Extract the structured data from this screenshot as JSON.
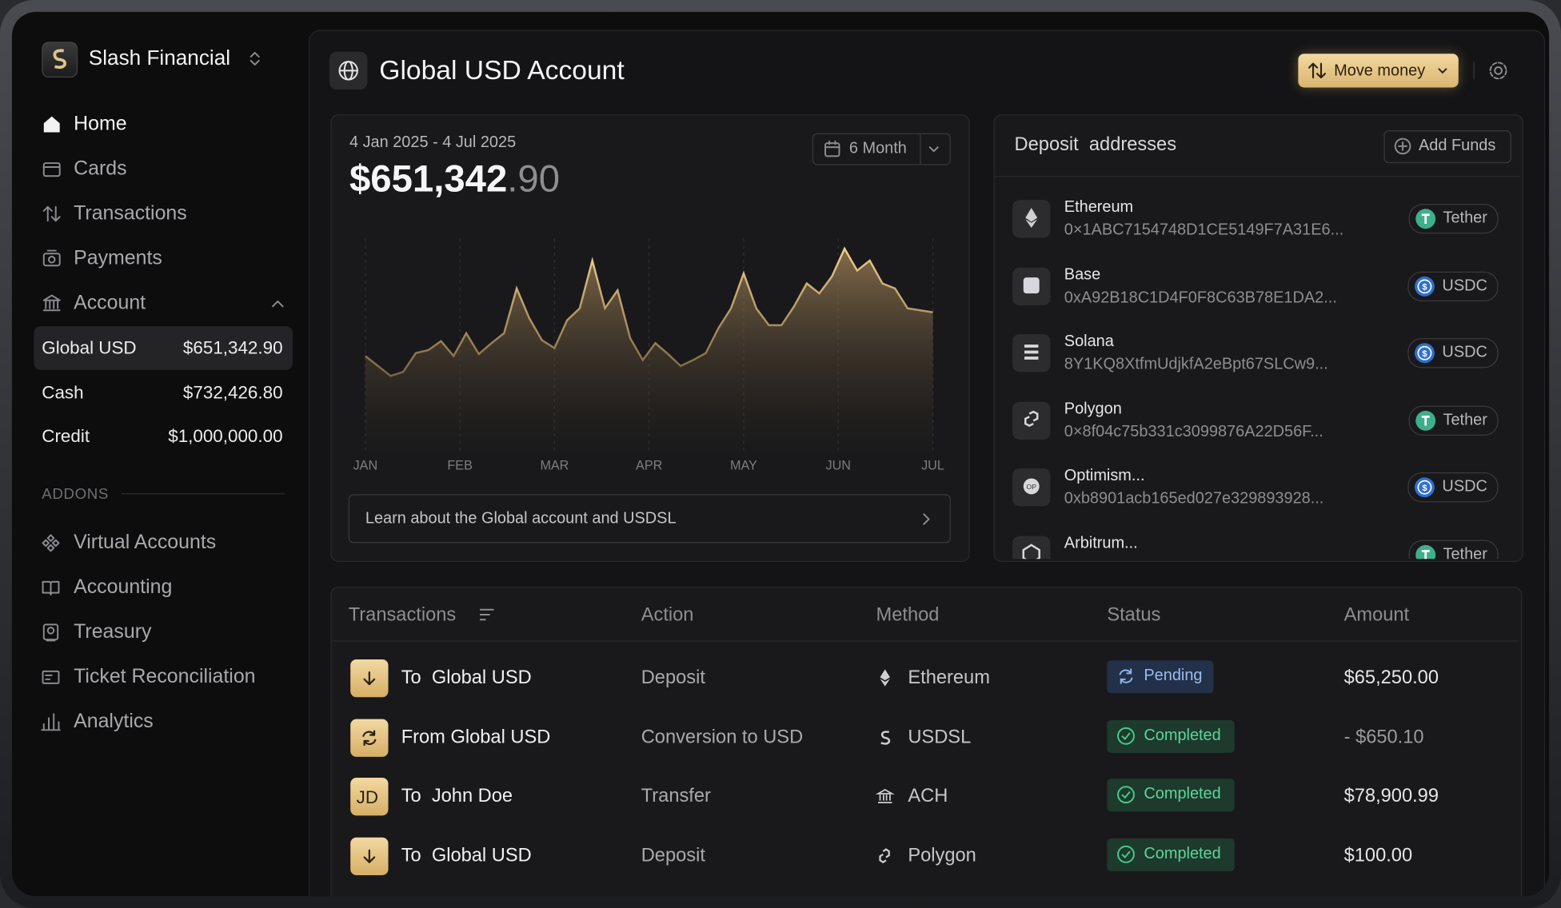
{
  "sidebar": {
    "org": "Slash Financial",
    "nav": [
      "Home",
      "Cards",
      "Transactions",
      "Payments",
      "Account"
    ],
    "accounts": [
      {
        "name": "Global USD",
        "amount": "$651,342.90"
      },
      {
        "name": "Cash",
        "amount": "$732,426.80"
      },
      {
        "name": "Credit",
        "amount": "$1,000,000.00"
      }
    ],
    "addons_label": "ADDONS",
    "addons": [
      "Virtual Accounts",
      "Accounting",
      "Treasury",
      "Ticket Reconciliation",
      "Analytics"
    ]
  },
  "header": {
    "title": "Global USD Account",
    "move_money": "Move money"
  },
  "balance": {
    "date_range": "4 Jan 2025 - 4 Jul 2025",
    "amount_whole": "$651,342",
    "amount_cents": ".90",
    "period": "6 Month",
    "link": "Learn about the Global account and USDSL",
    "chart": {
      "type": "area",
      "months": [
        "JAN",
        "FEB",
        "MAR",
        "APR",
        "MAY",
        "JUN",
        "JUL"
      ],
      "values": [
        97,
        87,
        77,
        81,
        100,
        103,
        112,
        97,
        120,
        99,
        110,
        120,
        165,
        135,
        113,
        105,
        133,
        145,
        193,
        145,
        163,
        115,
        93,
        110,
        99,
        87,
        93,
        100,
        125,
        145,
        180,
        145,
        128,
        128,
        147,
        170,
        160,
        177,
        205,
        183,
        193,
        170,
        165,
        145,
        143,
        141
      ]
    }
  },
  "deposit": {
    "title": "Deposit  addresses",
    "add_funds": "Add Funds",
    "items": [
      {
        "network": "Ethereum",
        "address": "0×1ABC7154748D1CE5149F7A31E6...",
        "token": "Tether"
      },
      {
        "network": "Base",
        "address": "0xA92B18C1D4F0F8C63B78E1DA2...",
        "token": "USDC"
      },
      {
        "network": "Solana",
        "address": "8Y1KQ8XtfmUdjkfA2eBpt67SLCw9...",
        "token": "USDC"
      },
      {
        "network": "Polygon",
        "address": "0×8f04c75b331c3099876A22D56F...",
        "token": "Tether"
      },
      {
        "network": "Optimism...",
        "address": "0xb8901acb165ed027e329893928...",
        "token": "USDC"
      },
      {
        "network": "Arbitrum...",
        "address": "",
        "token": "Tether"
      }
    ]
  },
  "transactions": {
    "headers": [
      "Transactions",
      "Action",
      "Method",
      "Status",
      "Amount"
    ],
    "rows": [
      {
        "icon": "",
        "name": "To  Global USD",
        "action": "Deposit",
        "method": "Ethereum",
        "status": "Pending",
        "amount": "$65,250.00"
      },
      {
        "icon": "",
        "name": "From Global USD",
        "action": "Conversion to USD",
        "method": "USDSL",
        "status": "Completed",
        "amount": "- $650.10"
      },
      {
        "icon": "JD",
        "name": "To  John Doe",
        "action": "Transfer",
        "method": "ACH",
        "status": "Completed",
        "amount": "$78,900.99"
      },
      {
        "icon": "",
        "name": "To  Global USD",
        "action": "Deposit",
        "method": "Polygon",
        "status": "Completed",
        "amount": "$100.00"
      }
    ]
  }
}
